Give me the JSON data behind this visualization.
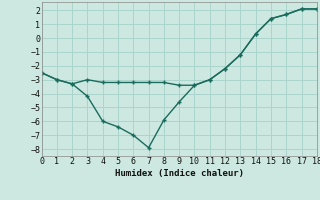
{
  "xlabel": "Humidex (Indice chaleur)",
  "bg_color": "#cce8e0",
  "grid_color": "#aad4cc",
  "line_color": "#1a6b5e",
  "line1_x": [
    0,
    1,
    2,
    3,
    4,
    5,
    6,
    7,
    8,
    9,
    10,
    11,
    12,
    13,
    14,
    15,
    16,
    17,
    18
  ],
  "line1_y": [
    -2.5,
    -3.0,
    -3.3,
    -3.0,
    -3.2,
    -3.2,
    -3.2,
    -3.2,
    -3.2,
    -3.4,
    -3.4,
    -3.0,
    -2.2,
    -1.2,
    0.3,
    1.4,
    1.7,
    2.1,
    2.1
  ],
  "line2_x": [
    0,
    1,
    2,
    3,
    4,
    5,
    6,
    7,
    8,
    9,
    10,
    11,
    12,
    13,
    14,
    15,
    16,
    17,
    18
  ],
  "line2_y": [
    -2.5,
    -3.0,
    -3.3,
    -4.2,
    -6.0,
    -6.4,
    -7.0,
    -7.9,
    -5.9,
    -4.6,
    -3.4,
    -3.0,
    -2.2,
    -1.2,
    0.3,
    1.4,
    1.7,
    2.1,
    2.1
  ],
  "ylim": [
    -8.5,
    2.6
  ],
  "xlim": [
    0,
    18
  ],
  "yticks": [
    -8,
    -7,
    -6,
    -5,
    -4,
    -3,
    -2,
    -1,
    0,
    1,
    2
  ],
  "xticks": [
    0,
    1,
    2,
    3,
    4,
    5,
    6,
    7,
    8,
    9,
    10,
    11,
    12,
    13,
    14,
    15,
    16,
    17,
    18
  ]
}
